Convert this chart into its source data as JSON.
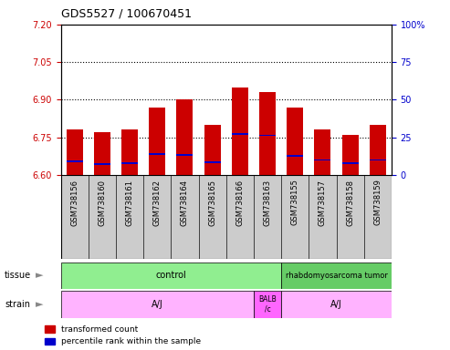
{
  "title": "GDS5527 / 100670451",
  "samples": [
    "GSM738156",
    "GSM738160",
    "GSM738161",
    "GSM738162",
    "GSM738164",
    "GSM738165",
    "GSM738166",
    "GSM738163",
    "GSM738155",
    "GSM738157",
    "GSM738158",
    "GSM738159"
  ],
  "bar_tops": [
    6.78,
    6.77,
    6.78,
    6.87,
    6.9,
    6.8,
    6.95,
    6.93,
    6.87,
    6.78,
    6.76,
    6.8
  ],
  "bar_bottoms": [
    6.6,
    6.6,
    6.6,
    6.6,
    6.6,
    6.6,
    6.6,
    6.6,
    6.6,
    6.6,
    6.6,
    6.6
  ],
  "blue_positions": [
    6.655,
    6.645,
    6.648,
    6.682,
    6.68,
    6.651,
    6.762,
    6.758,
    6.675,
    6.66,
    6.648,
    6.66
  ],
  "ylim": [
    6.6,
    7.2
  ],
  "yticks_left": [
    6.6,
    6.75,
    6.9,
    7.05,
    7.2
  ],
  "yticks_right": [
    0,
    25,
    50,
    75,
    100
  ],
  "ytick_right_labels": [
    "0",
    "25",
    "50",
    "75",
    "100%"
  ],
  "grid_lines": [
    6.75,
    6.9,
    7.05
  ],
  "bar_color": "#CC0000",
  "blue_color": "#0000CC",
  "bg_color": "#CCCCCC",
  "plot_bg": "#FFFFFF",
  "left_axis_color": "#CC0000",
  "right_axis_color": "#0000CC",
  "tissue_control_color": "#90EE90",
  "tissue_rhabdo_color": "#66CC66",
  "strain_aj_color": "#FFB3FF",
  "strain_balb_color": "#FF66FF"
}
